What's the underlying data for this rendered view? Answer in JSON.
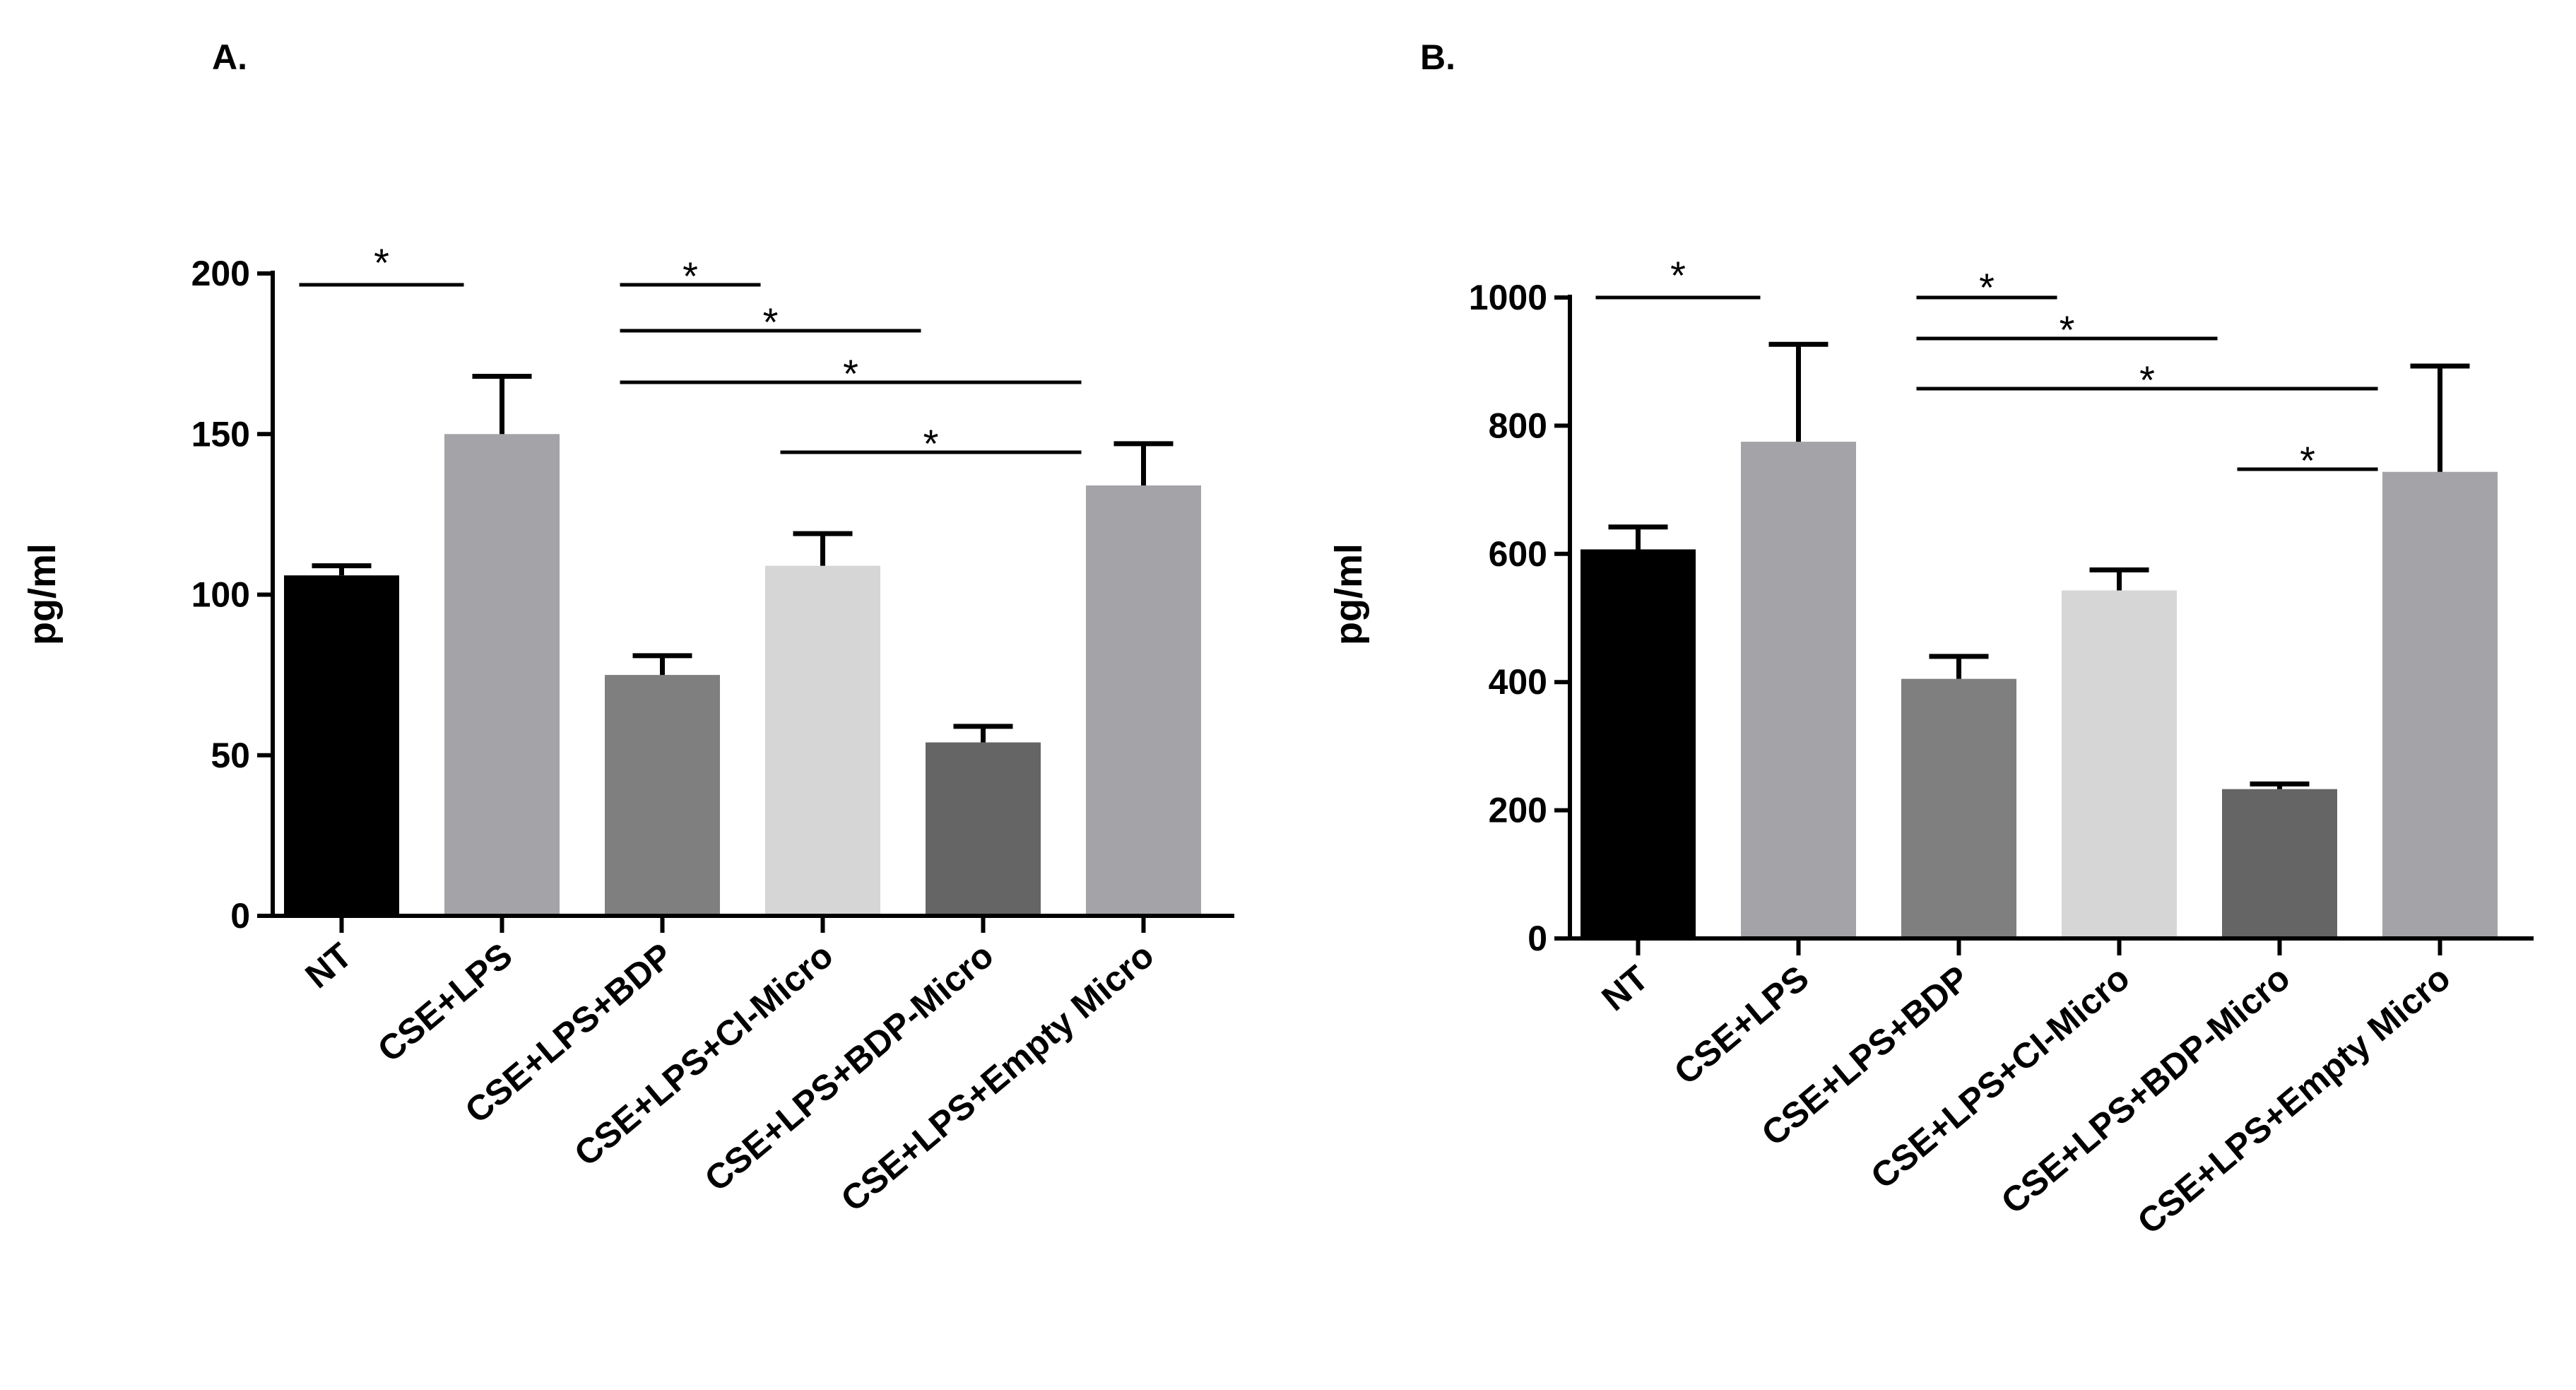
{
  "chart_data": [
    {
      "type": "bar",
      "panel": "A.",
      "ylabel": "pg/ml",
      "ylim": [
        0,
        200
      ],
      "yticks": [
        "0",
        "50",
        "100",
        "150",
        "200"
      ],
      "categories": [
        "NT",
        "CSE+LPS",
        "CSE+LPS+BDP",
        "CSE+LPS+CI-Micro",
        "CSE+LPS+BDP-Micro",
        "CSE+LPS+Empty Micro"
      ],
      "values": [
        106,
        150,
        75,
        109,
        54,
        134
      ],
      "errors": [
        3,
        18,
        6,
        10,
        5,
        13
      ],
      "colors": [
        "#000000",
        "#a3a3a8",
        "#7f7f7f",
        "#d6d6d6",
        "#656565",
        "#a3a3a8"
      ],
      "significance": [
        {
          "from": 0,
          "to": 1,
          "label": "*"
        },
        {
          "from": 2,
          "to": 3,
          "label": "*"
        },
        {
          "from": 2,
          "to": 4,
          "label": "*"
        },
        {
          "from": 2,
          "to": 5,
          "label": "*"
        },
        {
          "from": 3,
          "to": 5,
          "label": "*"
        }
      ]
    },
    {
      "type": "bar",
      "panel": "B.",
      "ylabel": "pg/ml",
      "ylim": [
        0,
        1000
      ],
      "yticks": [
        "0",
        "200",
        "400",
        "600",
        "800",
        "1000"
      ],
      "categories": [
        "NT",
        "CSE+LPS",
        "CSE+LPS+BDP",
        "CSE+LPS+CI-Micro",
        "CSE+LPS+BDP-Micro",
        "CSE+LPS+Empty Micro"
      ],
      "values": [
        607,
        775,
        405,
        543,
        233,
        728
      ],
      "errors": [
        35,
        152,
        35,
        32,
        8,
        165
      ],
      "colors": [
        "#000000",
        "#a3a3a8",
        "#7f7f7f",
        "#d6d6d6",
        "#656565",
        "#a3a3a8"
      ],
      "significance": [
        {
          "from": 0,
          "to": 1,
          "label": "*"
        },
        {
          "from": 2,
          "to": 3,
          "label": "*"
        },
        {
          "from": 2,
          "to": 4,
          "label": "*"
        },
        {
          "from": 2,
          "to": 5,
          "label": "*"
        },
        {
          "from": 4,
          "to": 5,
          "label": "*"
        }
      ]
    }
  ]
}
